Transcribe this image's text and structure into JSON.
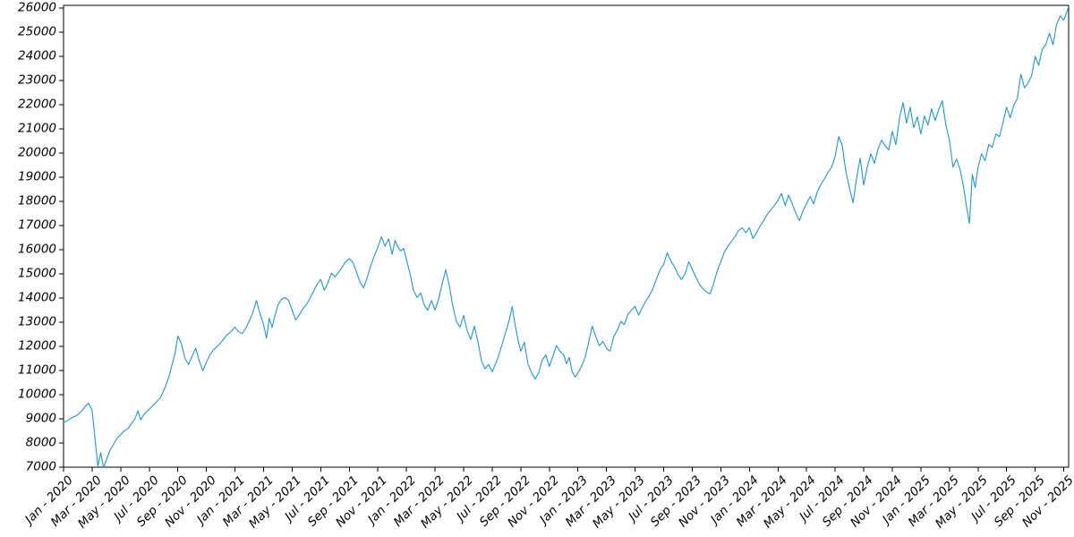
{
  "chart_data": {
    "type": "line",
    "title": "",
    "grid": false,
    "legend": false,
    "line_color": "#1d96da",
    "axis_color": "#000000",
    "ylim": [
      7000,
      26110
    ],
    "y_ticks": [
      7000,
      8000,
      9000,
      10000,
      11000,
      12000,
      13000,
      14000,
      15000,
      16000,
      17000,
      18000,
      19000,
      20000,
      21000,
      22000,
      23000,
      24000,
      25000,
      26000
    ],
    "x_tick_interval_months": 2,
    "x_tick_labels": [
      "Jan - 2020",
      "Mar - 2020",
      "May - 2020",
      "Jul - 2020",
      "Sep - 2020",
      "Nov - 2020",
      "Jan - 2021",
      "Mar - 2021",
      "May - 2021",
      "Jul - 2021",
      "Sep - 2021",
      "Nov - 2021",
      "Jan - 2022",
      "Mar - 2022",
      "May - 2022",
      "Jul - 2022",
      "Sep - 2022",
      "Nov - 2022",
      "Jan - 2023",
      "Mar - 2023",
      "May - 2023",
      "Jul - 2023",
      "Sep - 2023",
      "Nov - 2023",
      "Jan - 2024",
      "Mar - 2024",
      "May - 2024",
      "Jul - 2024",
      "Sep - 2024",
      "Nov - 2024",
      "Jan - 2025",
      "Mar - 2025",
      "May - 2025",
      "Jul - 2025",
      "Sep - 2025",
      "Nov - 2025"
    ],
    "series": [
      {
        "start_month": "Jan - 2020",
        "end_month": "Nov - 2025",
        "monthly_values": [
          [
            8850,
            8900,
            8980,
            9050,
            9100
          ],
          [
            9180,
            9320,
            9500,
            9650
          ],
          [
            9350,
            8200,
            7050,
            7600,
            6980
          ],
          [
            7300,
            7700,
            7950,
            8200
          ],
          [
            8350,
            8500,
            8590,
            8800
          ],
          [
            9000,
            9330,
            8960,
            9150,
            9300
          ],
          [
            9400,
            9550,
            9700,
            9850
          ],
          [
            10150,
            10450,
            10800,
            11250,
            11700
          ],
          [
            12430,
            12100,
            11500,
            11250
          ],
          [
            11600,
            11920,
            11400,
            10990
          ],
          [
            11350,
            11660,
            11850,
            12000
          ],
          [
            12150,
            12290,
            12450,
            12550,
            12660
          ],
          [
            12790,
            12600,
            12530,
            12750
          ],
          [
            13050,
            13400,
            13900,
            13350
          ],
          [
            12900,
            12340,
            13160,
            12790,
            13300
          ],
          [
            13700,
            13950,
            14020,
            13900
          ],
          [
            13500,
            13090,
            13300,
            13560
          ],
          [
            13720,
            14000,
            14280,
            14580
          ],
          [
            14770,
            14320,
            14620,
            15030
          ],
          [
            14880,
            15060,
            15280,
            15510
          ],
          [
            15630,
            15480,
            15080,
            14660
          ],
          [
            14420,
            14850,
            15330,
            15750
          ],
          [
            16100,
            16540,
            16150,
            16450
          ],
          [
            15810,
            16380,
            16120,
            15950,
            16050
          ],
          [
            15600,
            15000,
            14300,
            14020
          ],
          [
            14210,
            13690,
            13500,
            13900
          ],
          [
            13500,
            13950,
            14600,
            15170
          ],
          [
            14500,
            13650,
            13020,
            12800
          ],
          [
            13280,
            12650,
            12280,
            12840
          ],
          [
            12200,
            11400,
            11070,
            11250
          ],
          [
            10950,
            11300,
            11700,
            12200
          ],
          [
            12700,
            13100,
            13650,
            12900,
            12280
          ],
          [
            11800,
            12170,
            11280,
            10920
          ],
          [
            10650,
            10900,
            11430,
            11650
          ],
          [
            11170,
            11600,
            12030,
            11800
          ],
          [
            11650,
            11280,
            11540,
            10950,
            10730
          ],
          [
            10900,
            11170,
            11540,
            12170
          ],
          [
            12840,
            12400,
            12030,
            12200
          ],
          [
            11910,
            11800,
            12400,
            12660
          ],
          [
            13030,
            12900,
            13330,
            13500
          ],
          [
            13660,
            13290,
            13600,
            13880
          ],
          [
            14100,
            14400,
            14800,
            15180
          ],
          [
            15400,
            15870,
            15540,
            15300
          ],
          [
            14980,
            14760,
            15000,
            15500
          ],
          [
            15200,
            14870,
            14570,
            14390
          ],
          [
            14250,
            14170,
            14600,
            15130
          ],
          [
            15500,
            15900,
            16150,
            16350
          ],
          [
            16550,
            16800,
            16910,
            16700
          ],
          [
            16910,
            16460,
            16700,
            16980
          ],
          [
            17200,
            17470,
            17650,
            17830
          ],
          [
            18050,
            18330,
            17830,
            18260
          ],
          [
            17900,
            17500,
            17200,
            17600
          ],
          [
            17900,
            18200,
            17900,
            18400
          ],
          [
            18700,
            18940,
            19200,
            19420
          ],
          [
            19860,
            20680,
            20310,
            19240
          ],
          [
            18570,
            17940,
            18940,
            19790
          ],
          [
            18680,
            19420,
            19970,
            19570
          ],
          [
            20160,
            20530,
            20300,
            20120
          ],
          [
            20900,
            20350,
            21420,
            22090
          ],
          [
            21240,
            21900,
            21050,
            21500
          ],
          [
            20790,
            21530,
            21160,
            21830
          ],
          [
            21350,
            21800,
            22160,
            21160
          ],
          [
            20530,
            19420,
            19750,
            19310
          ],
          [
            18570,
            17760,
            17090,
            19120,
            18570
          ],
          [
            19420,
            19970,
            19680,
            20350
          ],
          [
            20240,
            20790,
            20680,
            21270
          ],
          [
            21900,
            21460,
            21970,
            22260
          ],
          [
            23260,
            22700,
            22890,
            23200
          ],
          [
            24000,
            23630,
            24300,
            24500
          ],
          [
            24960,
            24480,
            25330,
            25670
          ],
          [
            25500,
            26040,
            25900
          ]
        ]
      }
    ]
  }
}
